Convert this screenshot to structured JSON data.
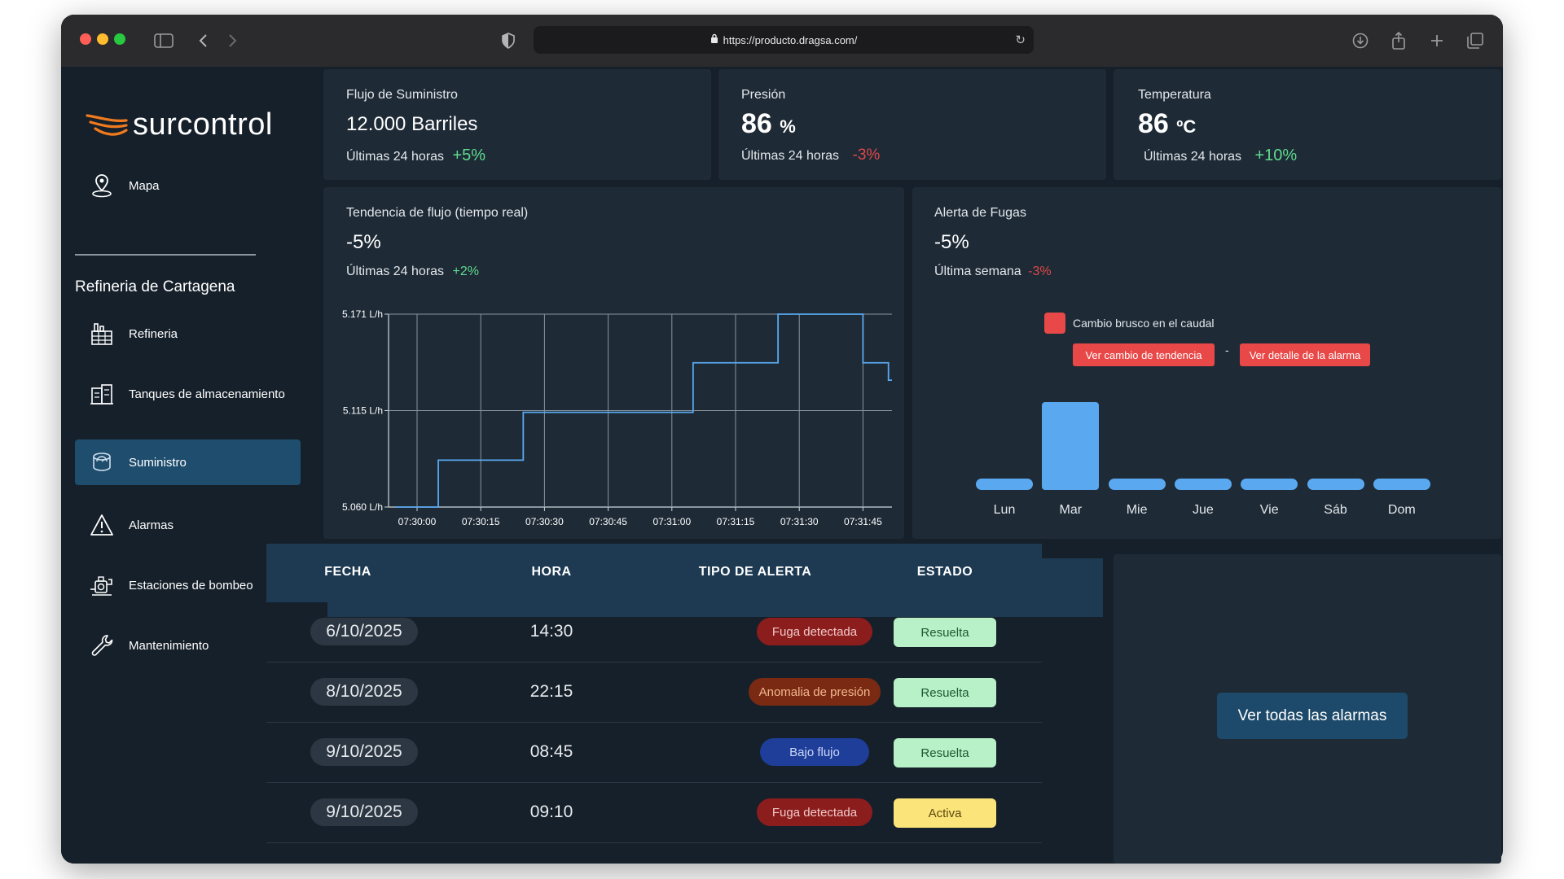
{
  "browser": {
    "url": "https://producto.dragsa.com/"
  },
  "sidebar": {
    "brand": "surcontrol",
    "top_item": "Mapa",
    "section_title": "Refineria de Cartagena",
    "items": [
      {
        "label": "Refineria",
        "icon": "refinery-icon"
      },
      {
        "label": "Tanques de almacenamiento",
        "icon": "tank-icon"
      },
      {
        "label": "Suministro",
        "icon": "supply-icon",
        "active": true
      },
      {
        "label": "Alarmas",
        "icon": "warning-icon"
      },
      {
        "label": "Estaciones de bombeo",
        "icon": "pump-icon"
      },
      {
        "label": "Mantenimiento",
        "icon": "wrench-icon"
      }
    ]
  },
  "kpis": {
    "flow": {
      "label": "Flujo de Suministro",
      "value": "12.000 Barriles",
      "period": "Últimas 24 horas",
      "change": "+5%"
    },
    "pressure": {
      "label": "Presión",
      "value": "86",
      "unit": "%",
      "period": "Últimas 24 horas",
      "change": "-3%"
    },
    "temperature": {
      "label": "Temperatura",
      "value": "86",
      "unit": "ºC",
      "period": "Últimas 24 horas",
      "change": "+10%"
    }
  },
  "trend": {
    "title": "Tendencia de flujo (tiempo real)",
    "value": "-5%",
    "period": "Últimas 24 horas",
    "change": "+2%"
  },
  "leak": {
    "title": "Alerta de Fugas",
    "value": "-5%",
    "period": "Última semana",
    "change": "-3%",
    "legend": "Cambio brusco en el caudal",
    "btn_trend": "Ver cambio de tendencia",
    "separator": "-",
    "btn_detail": "Ver detalle de la alarma"
  },
  "chart_data": [
    {
      "type": "line",
      "step": true,
      "xlabel": "",
      "ylabel": "",
      "y_ticks": [
        "5.060 L/h",
        "5.115 L/h",
        "5.171 L/h"
      ],
      "ylim": [
        5.06,
        5.171
      ],
      "x_ticks": [
        "07:30:00",
        "07:30:15",
        "07:30:30",
        "07:30:45",
        "07:31:00",
        "07:31:15",
        "07:31:30",
        "07:31:45"
      ],
      "x": [
        "07:29:55",
        "07:30:05",
        "07:30:25",
        "07:30:45",
        "07:31:05",
        "07:31:25",
        "07:31:45",
        "07:31:51"
      ],
      "values": [
        5.06,
        5.087,
        5.1145,
        5.1145,
        5.143,
        5.171,
        5.143,
        5.133
      ],
      "grid": true
    },
    {
      "type": "bar",
      "categories": [
        "Lun",
        "Mar",
        "Mie",
        "Jue",
        "Vie",
        "Sáb",
        "Dom"
      ],
      "values": [
        0.13,
        1.0,
        0.13,
        0.13,
        0.13,
        0.13,
        0.13
      ],
      "highlight": "Mar",
      "color": "#5aa9f0",
      "grid": false
    }
  ],
  "table": {
    "headers": [
      "FECHA",
      "HORA",
      "TIPO DE ALERTA",
      "ESTADO"
    ],
    "rows": [
      {
        "date": "6/10/2025",
        "time": "14:30",
        "type": "Fuga detectada",
        "type_kind": "leak",
        "state": "Resuelta",
        "state_kind": "resolved"
      },
      {
        "date": "8/10/2025",
        "time": "22:15",
        "type": "Anomalia de presión",
        "type_kind": "pressure",
        "state": "Resuelta",
        "state_kind": "resolved"
      },
      {
        "date": "9/10/2025",
        "time": "08:45",
        "type": "Bajo flujo",
        "type_kind": "lowflow",
        "state": "Resuelta",
        "state_kind": "resolved"
      },
      {
        "date": "9/10/2025",
        "time": "09:10",
        "type": "Fuga detectada",
        "type_kind": "leak",
        "state": "Activa",
        "state_kind": "active"
      }
    ]
  },
  "actions": {
    "view_all": "Ver todas las alarmas"
  },
  "colors": {
    "accent_orange": "#f07a1e",
    "bar_blue": "#5aa9f0",
    "alert_red": "#e84848",
    "positive": "#5fdc8e"
  }
}
